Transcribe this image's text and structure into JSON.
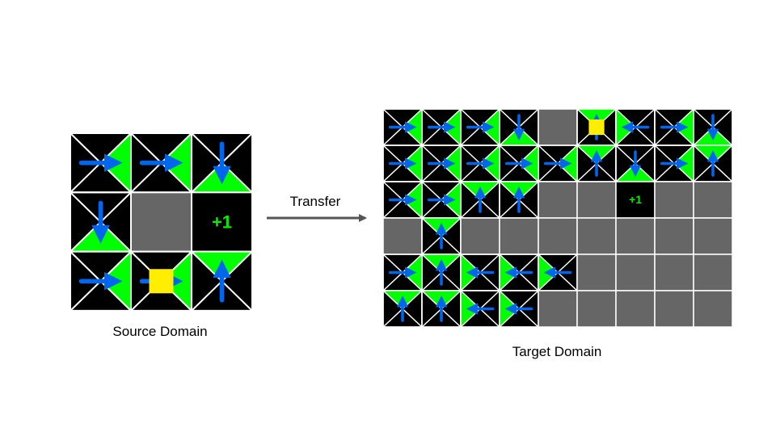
{
  "colors": {
    "wall": "#666666",
    "cell": "#000000",
    "green": "#00ff00",
    "arrow": "#0066ee",
    "agent": "#ffee00",
    "reward_text": "#00ee00",
    "line": "#ffffff",
    "transfer_arrow": "#555555"
  },
  "source": {
    "caption": "Source Domain",
    "rows": 3,
    "cols": 3,
    "grid": [
      [
        "R",
        "R",
        "D"
      ],
      [
        "D",
        "W",
        "G"
      ],
      [
        "R",
        "A",
        "U"
      ]
    ],
    "agent_arrow": "R",
    "goal_label": "+1"
  },
  "transfer": {
    "label": "Transfer"
  },
  "target": {
    "caption": "Target Domain",
    "rows": 6,
    "cols": 9,
    "grid": [
      [
        "R",
        "R",
        "R",
        "D",
        "W",
        "A",
        "L",
        "R",
        "D"
      ],
      [
        "R",
        "R",
        "R",
        "R",
        "R",
        "U",
        "D",
        "R",
        "U"
      ],
      [
        "R",
        "R",
        "U",
        "U",
        "W",
        "W",
        "G",
        "W",
        "W"
      ],
      [
        "W",
        "U",
        "W",
        "W",
        "W",
        "W",
        "W",
        "W",
        "W"
      ],
      [
        "R",
        "U",
        "L",
        "L",
        "L",
        "W",
        "W",
        "W",
        "W"
      ],
      [
        "U",
        "U",
        "L",
        "L",
        "W",
        "W",
        "W",
        "W",
        "W"
      ]
    ],
    "agent_arrow": "U",
    "goal_label": "+1"
  }
}
